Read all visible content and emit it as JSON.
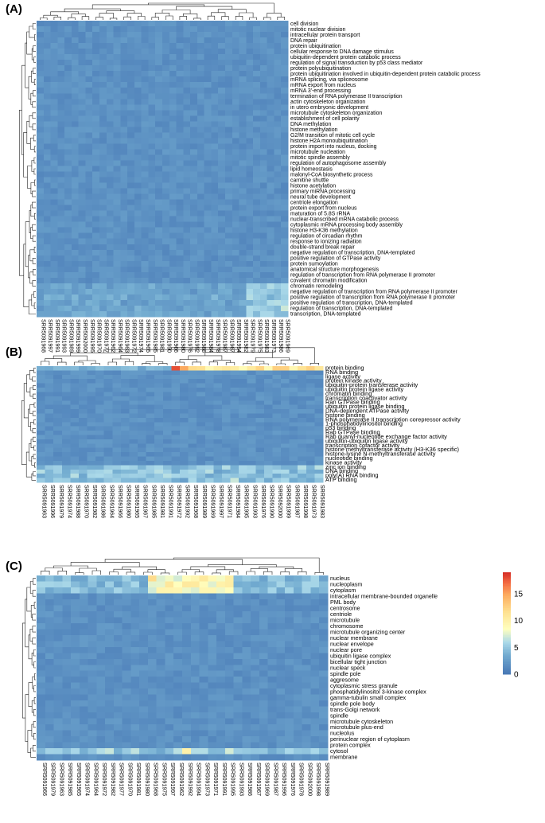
{
  "chart_data": [
    {
      "type": "heatmap",
      "panel_label": "(A)",
      "rows": [
        "cell division",
        "mitotic nuclear division",
        "intracellular protein transport",
        "DNA repair",
        "protein ubiquitination",
        "cellular response to DNA damage stimulus",
        "ubiquitin-dependent protein catabolic process",
        "regulation of signal transduction by p53 class mediator",
        "protein polyubiquitination",
        "protein ubiquitination involved in ubiquitin-dependent protein catabolic process",
        "mRNA splicing, via spliceosome",
        "mRNA export from nucleus",
        "mRNA 3'-end processing",
        "termination of RNA polymerase II transcription",
        "actin cytoskeleton organization",
        "in utero embryonic development",
        "microtubule cytoskeleton organization",
        "establishment of cell polarity",
        "DNA methylation",
        "histone methylation",
        "G2/M transition of mitotic cell cycle",
        "histone H2A monoubiquitination",
        "protein import into nucleus, docking",
        "microtubule nucleation",
        "mitotic spindle assembly",
        "regulation of autophagosome assembly",
        "lipid homeostasis",
        "malonyl-CoA biosynthetic process",
        "carnitine shuttle",
        "histone acetylation",
        "primary miRNA processing",
        "neural tube development",
        "centriole elongation",
        "protein export from nucleus",
        "maturation of 5.8S rRNA",
        "nuclear-transcribed mRNA catabolic process",
        "cytoplasmic mRNA processing body assembly",
        "histone H3-K36 methylation",
        "regulation of circadian rhythm",
        "response to ionizing radiation",
        "double-strand break repair",
        "negative regulation of transcription, DNA-templated",
        "positive regulation of GTPase activity",
        "protein sumoylation",
        "anatomical structure morphogenesis",
        "regulation of transcription from RNA polymerase II promoter",
        "covalent chromatin modification",
        "chromatin remodeling",
        "negative regulation of transcription from RNA polymerase II promoter",
        "positive regulation of transcription from RNA polymerase II promoter",
        "positive regulation of transcription, DNA-templated",
        "regulation of transcription, DNA-templated",
        "transcription, DNA-templated"
      ],
      "columns": [
        "SRR5091968",
        "SRR5091997",
        "SRR5091991",
        "SRR5091993",
        "SRR5091989",
        "SRR5091999",
        "SRR5092000",
        "SRR5091995",
        "SRR5091970",
        "SRR5091977",
        "SRR5091962",
        "SRR5091964",
        "SRR5091963",
        "SRR5091972",
        "SRR5091974",
        "SRR5091965",
        "SRR5091985",
        "SRR5091981",
        "SRR5091990",
        "SRR5091966",
        "SRR5091980",
        "SRR5091976",
        "SRR5091992",
        "SRR5091988",
        "SRR5091984",
        "SRR5091978",
        "SRR5091987",
        "SRR5091967",
        "SRR5091994",
        "SRR5091982",
        "SRR5091979",
        "SRR5091975",
        "SRR5091983",
        "SRR5091973",
        "SRR5091986",
        "SRR5091969"
      ],
      "values_description": "fold-enrichment-like counts, mostly 0-3; highest (about 4-6) in the bottom transcription rows for the rightmost sample cluster",
      "hot_cells": [
        {
          "row": "transcription, DNA-templated",
          "column": "SRR5091983",
          "value": 6
        },
        {
          "row": "regulation of transcription, DNA-templated",
          "column": "SRR5091973",
          "value": 5
        },
        {
          "row": "positive regulation of transcription, DNA-templated",
          "column": "SRR5091975",
          "value": 5
        },
        {
          "row": "negative regulation of transcription from RNA polymerase II promoter",
          "column": "SRR5091986",
          "value": 4.5
        }
      ]
    },
    {
      "type": "heatmap",
      "panel_label": "(B)",
      "rows": [
        "protein binding",
        "RNA binding",
        "ligase activity",
        "protein kinase activity",
        "ubiquitin-protein transferase activity",
        "ubiquitin protein ligase activity",
        "chromatin binding",
        "transcription coactivator activity",
        "Ran GTPase binding",
        "ubiquitin protein ligase binding",
        "DNA-dependent ATPase activity",
        "histone binding",
        "RNA polymerase II transcription corepressor activity",
        "1-phosphatidylinositol binding",
        "p53 binding",
        "Rab GTPase binding",
        "Rab guanyl-nucleotide exchange factor activity",
        "ubiquitin-ubiquitin ligase activity",
        "transcription cofactor activity",
        "histone methyltransferase activity (H3-K36 specific)",
        "histone-lysine N-methyltransferase activity",
        "nucleotide binding",
        "kinase activity",
        "zinc ion binding",
        "DNA binding",
        "poly(A) RNA binding",
        "ATP binding"
      ],
      "columns": [
        "SRR5091963",
        "SRR5091996",
        "SRR5091979",
        "SRR5091974",
        "SRR5091988",
        "SRR5091970",
        "SRR5091982",
        "SRR5091986",
        "SRR5091964",
        "SRR5091966",
        "SRR5091980",
        "SRR5091965",
        "SRR5091967",
        "SRR5091985",
        "SRR5091981",
        "SRR5091991",
        "SRR5091972",
        "SRR5091992",
        "SRR5091968",
        "SRR5091989",
        "SRR5091969",
        "SRR5091997",
        "SRR5091971",
        "SRR5091984",
        "SRR5091995",
        "SRR5091993",
        "SRR5091976",
        "SRR5091990",
        "SRR5092000",
        "SRR5091999",
        "SRR5091987",
        "SRR5091998",
        "SRR5091973",
        "SRR5091983"
      ],
      "values_description": "protein binding row highest (up to about 18); DNA binding, poly(A) RNA binding, zinc ion binding moderate (about 4-7)",
      "hot_cells": [
        {
          "row": "protein binding",
          "column": "SRR5091972",
          "value": 18
        },
        {
          "row": "protein binding",
          "column": "SRR5091992",
          "value": 15
        },
        {
          "row": "protein binding",
          "column": "SRR5091968",
          "value": 12
        },
        {
          "row": "protein binding",
          "column": "SRR5091983",
          "value": 11
        }
      ]
    },
    {
      "type": "heatmap",
      "panel_label": "(C)",
      "rows": [
        "nucleus",
        "nucleoplasm",
        "cytoplasm",
        "intracellular membrane-bounded organelle",
        "PML body",
        "centrosome",
        "centriole",
        "microtubule",
        "chromosome",
        "microtubule organizing center",
        "nuclear membrane",
        "nuclear envelope",
        "nuclear pore",
        "ubiquitin ligase complex",
        "bicellular tight junction",
        "nuclear speck",
        "spindle pole",
        "aggresome",
        "cytoplasmic stress granule",
        "phosphatidylinositol 3-kinase complex",
        "gamma-tubulin small complex",
        "spindle pole body",
        "trans-Golgi network",
        "spindle",
        "microtubule cytoskeleton",
        "microtubule plus-end",
        "nucleolus",
        "perinuclear region of cytoplasm",
        "protein complex",
        "cytosol",
        "membrane"
      ],
      "columns": [
        "SRR5091966",
        "SRR5091979",
        "SRR5091963",
        "SRR5091985",
        "SRR5091965",
        "SRR5091974",
        "SRR5091964",
        "SRR5091972",
        "SRR5091982",
        "SRR5091977",
        "SRR5091970",
        "SRR5091981",
        "SRR5091980",
        "SRR5091968",
        "SRR5091975",
        "SRR5091997",
        "SRR5091962",
        "SRR5091992",
        "SRR5091994",
        "SRR5091973",
        "SRR5091971",
        "SRR5091991",
        "SRR5091995",
        "SRR5091993",
        "SRR5091986",
        "SRR5091967",
        "SRR5091969",
        "SRR5091987",
        "SRR5091996",
        "SRR5091976",
        "SRR5091978",
        "SRR5092000",
        "SRR5091998",
        "SRR5091989"
      ],
      "values_description": "nucleus/nucleoplasm/cytoplasm rows highest (about 8-12) in the middle sample cluster; cytosol moderate",
      "hot_cells": [
        {
          "row": "nucleus",
          "column": "SRR5091968",
          "value": 12
        },
        {
          "row": "nucleoplasm",
          "column": "SRR5091997",
          "value": 11
        },
        {
          "row": "cytosol",
          "column": "SRR5091992",
          "value": 10
        }
      ]
    }
  ],
  "legend": {
    "ticks": [
      "15",
      "10",
      "5",
      "0"
    ],
    "tick_values": [
      15,
      10,
      5,
      0
    ],
    "vmin": 0,
    "vmax": 19
  }
}
